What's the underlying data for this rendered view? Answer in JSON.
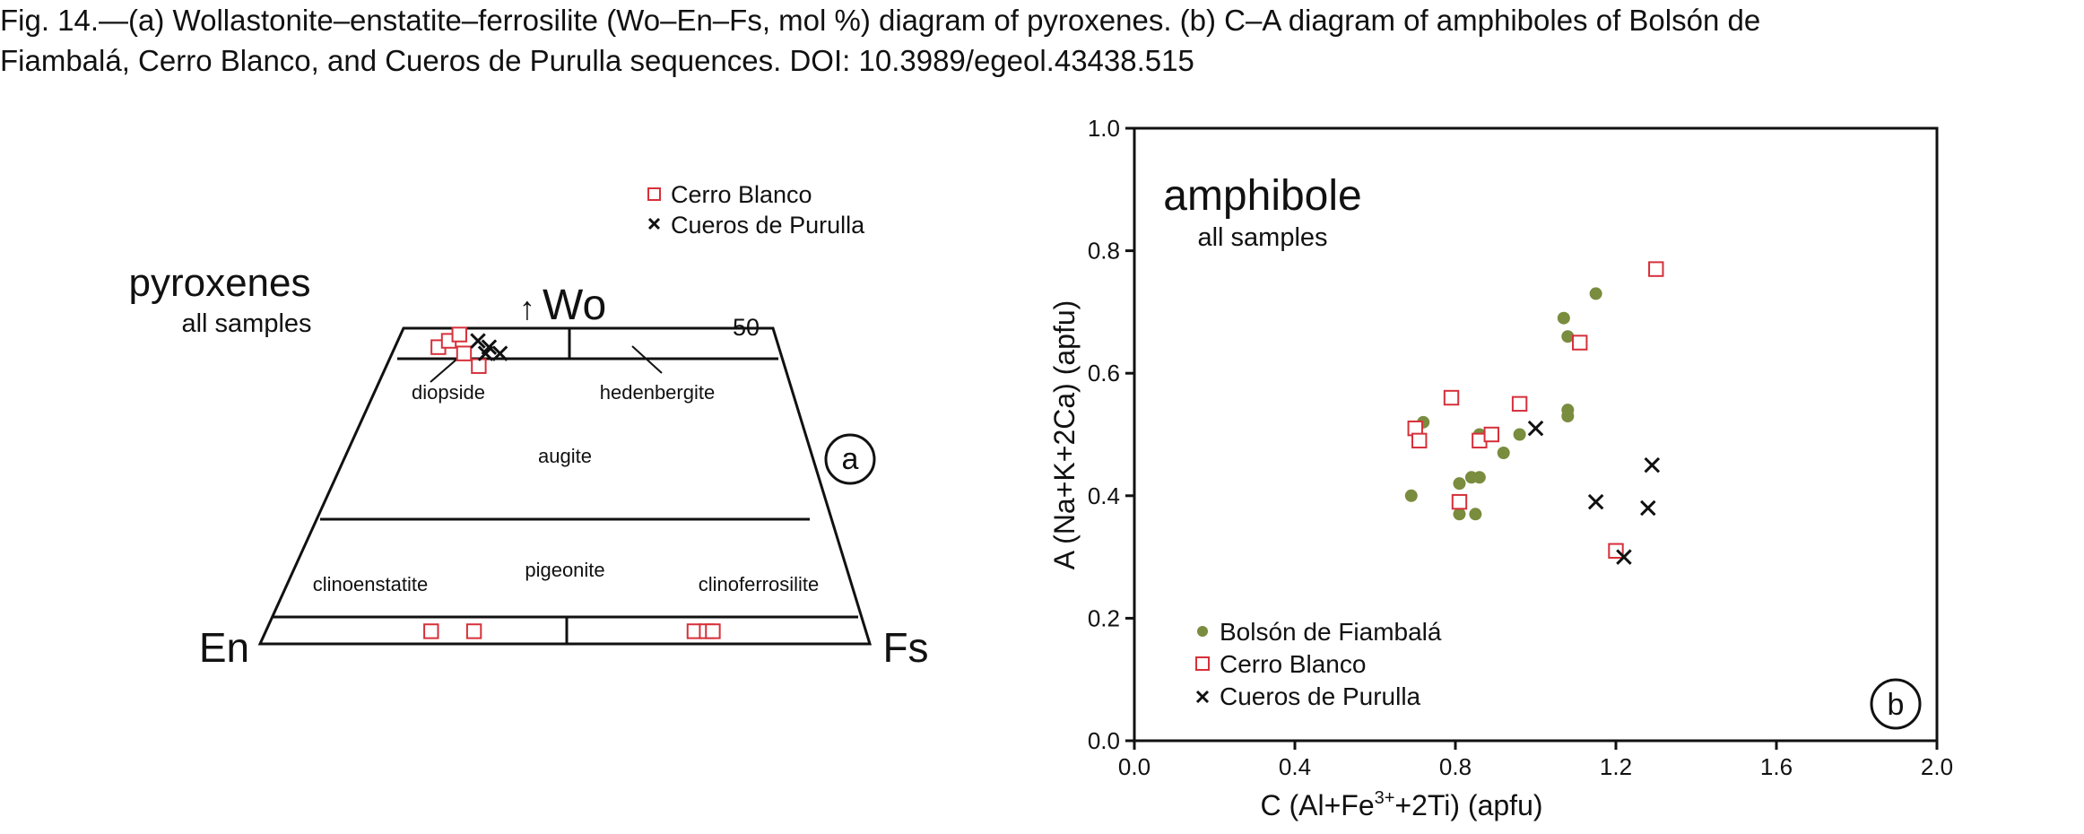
{
  "caption": {
    "line1": "Fig. 14.—(a) Wollastonite–enstatite–ferrosilite (Wo–En–Fs, mol %) diagram of pyroxenes. (b) C–A diagram of amphiboles of Bolsón de",
    "line2": "Fiambalá, Cerro Blanco, and Cueros de Purulla sequences. DOI: 10.3989/egeol.43438.515"
  },
  "colors": {
    "bolson": "#7a8c3e",
    "cerro": "#d6303a",
    "cueros": "#111111",
    "axis": "#111111"
  },
  "chart_data": [
    {
      "type": "scatter",
      "panel": "a",
      "title": "pyroxenes",
      "subtitle": "all samples",
      "apex_label": "Wo",
      "apex_arrow": "↑",
      "left_label": "En",
      "right_label": "Fs",
      "wo_tick_label": "50",
      "fields": [
        "diopside",
        "hedenbergite",
        "augite",
        "pigeonite",
        "clinoenstatite",
        "clinoferrosilite"
      ],
      "legend": [
        "Cerro Blanco",
        "Cueros de Purulla"
      ],
      "series": [
        {
          "name": "Cerro Blanco",
          "marker": "square",
          "points": [
            {
              "wo": 47,
              "fs": 6
            },
            {
              "wo": 48,
              "fs": 7
            },
            {
              "wo": 49,
              "fs": 8
            },
            {
              "wo": 46,
              "fs": 10
            },
            {
              "wo": 44,
              "fs": 13
            },
            {
              "wo": 2,
              "fs": 27
            },
            {
              "wo": 2,
              "fs": 34
            },
            {
              "wo": 2,
              "fs": 70
            },
            {
              "wo": 2,
              "fs": 72
            },
            {
              "wo": 2,
              "fs": 73
            }
          ]
        },
        {
          "name": "Cueros de Purulla",
          "marker": "x",
          "points": [
            {
              "wo": 48,
              "fs": 11
            },
            {
              "wo": 47,
              "fs": 13
            },
            {
              "wo": 46,
              "fs": 13
            },
            {
              "wo": 46,
              "fs": 15
            }
          ]
        }
      ]
    },
    {
      "type": "scatter",
      "panel": "b",
      "title": "amphibole",
      "subtitle": "all samples",
      "xlabel_parts": [
        "C (Al+Fe",
        "3+",
        "+2Ti) (apfu)"
      ],
      "ylabel": "A (Na+K+2Ca) (apfu)",
      "xlim": [
        0.0,
        2.0
      ],
      "ylim": [
        0.0,
        1.0
      ],
      "x_ticks": [
        "0.0",
        "0.4",
        "0.8",
        "1.2",
        "1.6",
        "2.0"
      ],
      "y_ticks": [
        "0.0",
        "0.2",
        "0.4",
        "0.6",
        "0.8",
        "1.0"
      ],
      "grid": false,
      "legend_position": "bottom-left",
      "series": [
        {
          "name": "Bolsón de Fiambalá",
          "marker": "circle",
          "points": [
            [
              0.69,
              0.4
            ],
            [
              0.72,
              0.52
            ],
            [
              0.81,
              0.37
            ],
            [
              0.81,
              0.42
            ],
            [
              0.84,
              0.43
            ],
            [
              0.85,
              0.37
            ],
            [
              0.86,
              0.43
            ],
            [
              0.86,
              0.5
            ],
            [
              0.92,
              0.47
            ],
            [
              0.96,
              0.5
            ],
            [
              1.07,
              0.69
            ],
            [
              1.08,
              0.66
            ],
            [
              1.08,
              0.53
            ],
            [
              1.08,
              0.54
            ],
            [
              1.15,
              0.73
            ]
          ]
        },
        {
          "name": "Cerro Blanco",
          "marker": "square",
          "points": [
            [
              0.7,
              0.51
            ],
            [
              0.71,
              0.49
            ],
            [
              0.79,
              0.56
            ],
            [
              0.81,
              0.39
            ],
            [
              0.86,
              0.49
            ],
            [
              0.89,
              0.5
            ],
            [
              0.96,
              0.55
            ],
            [
              1.11,
              0.65
            ],
            [
              1.2,
              0.31
            ],
            [
              1.3,
              0.77
            ]
          ]
        },
        {
          "name": "Cueros de Purulla",
          "marker": "x",
          "points": [
            [
              1.0,
              0.51
            ],
            [
              1.15,
              0.39
            ],
            [
              1.22,
              0.3
            ],
            [
              1.28,
              0.38
            ],
            [
              1.29,
              0.45
            ]
          ]
        }
      ]
    }
  ]
}
